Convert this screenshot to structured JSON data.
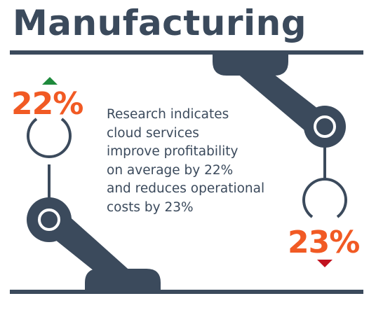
{
  "title": "Manufacturing",
  "stats": {
    "increase": {
      "value": "22%",
      "direction": "up",
      "arrow_color": "#1e8a3c"
    },
    "decrease": {
      "value": "23%",
      "direction": "down",
      "arrow_color": "#c1121f"
    }
  },
  "body_lines": [
    "Research indicates",
    "cloud services",
    "improve profitability",
    "on average by 22%",
    "and reduces operational",
    "costs by 23%"
  ],
  "colors": {
    "slate": "#3b4a5c",
    "accent_orange": "#f15a24",
    "background": "#ffffff"
  },
  "icons": [
    "robotic-arm-top",
    "robotic-arm-bottom",
    "up-arrow-icon",
    "down-arrow-icon"
  ]
}
